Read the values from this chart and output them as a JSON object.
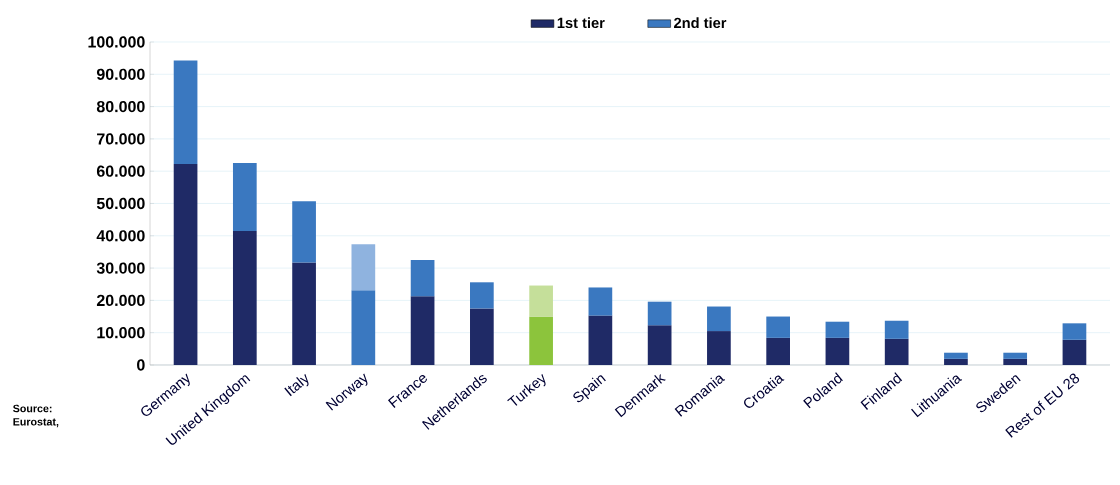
{
  "chart_data": {
    "type": "bar",
    "stacked": true,
    "categories": [
      "Germany",
      "United Kingdom",
      "Italy",
      "Norway",
      "France",
      "Netherlands",
      "Turkey",
      "Spain",
      "Denmark",
      "Romania",
      "Croatia",
      "Poland",
      "Finland",
      "Lithuania",
      "Sweden",
      "Rest of EU 28"
    ],
    "series": [
      {
        "name": "1st tier",
        "color": "#1f2a66",
        "colors": [
          "#1f2a66",
          "#1f2a66",
          "#1f2a66",
          "#3a78c0",
          "#1f2a66",
          "#1f2a66",
          "#8cc43c",
          "#1f2a66",
          "#1f2a66",
          "#1f2a66",
          "#1f2a66",
          "#1f2a66",
          "#1f2a66",
          "#1f2a66",
          "#1f2a66",
          "#1f2a66"
        ],
        "values": [
          62200,
          41500,
          31700,
          23100,
          21300,
          17500,
          14900,
          15300,
          12300,
          10500,
          8400,
          8400,
          8100,
          1900,
          1900,
          7800
        ]
      },
      {
        "name": "2nd tier",
        "color": "#3a78c0",
        "colors": [
          "#3a78c0",
          "#3a78c0",
          "#3a78c0",
          "#8fb3df",
          "#3a78c0",
          "#3a78c0",
          "#c5df9a",
          "#3a78c0",
          "#3a78c0",
          "#3a78c0",
          "#3a78c0",
          "#3a78c0",
          "#3a78c0",
          "#3a78c0",
          "#3a78c0",
          "#3a78c0"
        ],
        "values": [
          32100,
          21000,
          19000,
          14300,
          11200,
          8100,
          9700,
          8700,
          7300,
          7600,
          6600,
          5000,
          5600,
          1900,
          1900,
          5100
        ]
      }
    ],
    "ylim": [
      0,
      100000
    ],
    "yticks": [
      {
        "value": 0,
        "label": "0"
      },
      {
        "value": 10000,
        "label": "10.000"
      },
      {
        "value": 20000,
        "label": "20.000"
      },
      {
        "value": 30000,
        "label": "30.000"
      },
      {
        "value": 40000,
        "label": "40.000"
      },
      {
        "value": 50000,
        "label": "50.000"
      },
      {
        "value": 60000,
        "label": "60.000"
      },
      {
        "value": 70000,
        "label": "70.000"
      },
      {
        "value": 80000,
        "label": "80.000"
      },
      {
        "value": 90000,
        "label": "90.000"
      },
      {
        "value": 100000,
        "label": "100.000"
      }
    ],
    "grid": "y",
    "legend": "top",
    "annotations": [
      "Source: Eurostat,"
    ]
  }
}
